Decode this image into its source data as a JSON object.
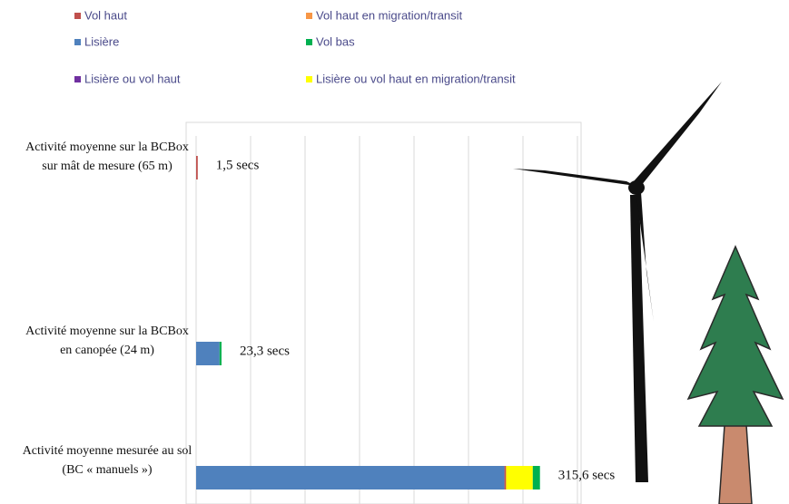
{
  "chart_data": {
    "type": "stacked-bar-horizontal",
    "categories": [
      "Activité moyenne sur la BCBox sur mât de mesure (65 m)",
      "Activité moyenne sur la BCBox en canopée (24 m)",
      "Activité moyenne mesurée au sol (BC « manuels »)"
    ],
    "series": [
      {
        "name": "Vol haut",
        "color": "#c0504d",
        "values": [
          1.5,
          0,
          1.5
        ]
      },
      {
        "name": "Vol haut en migration/transit",
        "color": "#f79646",
        "values": [
          0,
          0,
          0
        ]
      },
      {
        "name": "Lisière",
        "color": "#4f81bd",
        "values": [
          0,
          21.5,
          283
        ]
      },
      {
        "name": "Vol bas",
        "color": "#00b050",
        "values": [
          0,
          1.8,
          6.6
        ]
      },
      {
        "name": "Lisière ou vol haut",
        "color": "#7030a0",
        "values": [
          0,
          0,
          0
        ]
      },
      {
        "name": "Lisière ou vol haut en migration/transit",
        "color": "#ffff00",
        "values": [
          0,
          0,
          24.5
        ]
      }
    ],
    "totals": [
      1.5,
      23.3,
      315.6
    ],
    "total_labels": [
      "1,5 secs",
      "23,3 secs",
      "315,6 secs"
    ],
    "xlim": [
      0,
      350
    ],
    "xticks": [
      0,
      50,
      100,
      150,
      200,
      250,
      300,
      350
    ],
    "tick_labels": false,
    "grid": true
  }
}
